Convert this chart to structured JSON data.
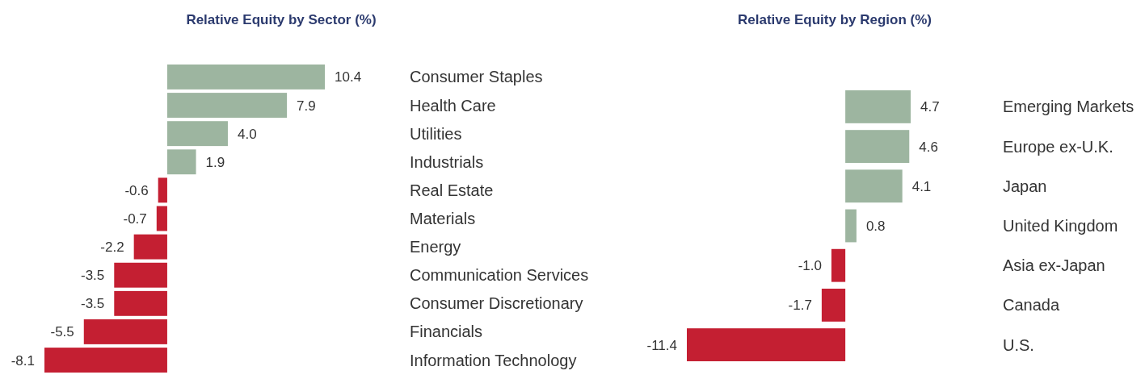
{
  "chart_data": [
    {
      "type": "bar",
      "orientation": "horizontal",
      "title": "Relative Equity by Sector (%)",
      "categories": [
        "Consumer Staples",
        "Health Care",
        "Utilities",
        "Industrials",
        "Real Estate",
        "Materials",
        "Energy",
        "Communication Services",
        "Consumer Discretionary",
        "Financials",
        "Information Technology"
      ],
      "values": [
        10.4,
        7.9,
        4.0,
        1.9,
        -0.6,
        -0.7,
        -2.2,
        -3.5,
        -3.5,
        -5.5,
        -8.1
      ],
      "value_labels": [
        "10.4",
        "7.9",
        "4.0",
        "1.9",
        "-0.6",
        "-0.7",
        "-2.2",
        "-3.5",
        "-3.5",
        "-5.5",
        "-8.1"
      ],
      "colors": [
        "#9db5a0",
        "#9db5a0",
        "#9db5a0",
        "#9db5a0",
        "#c41f32",
        "#c41f32",
        "#c41f32",
        "#c41f32",
        "#c41f32",
        "#c41f32",
        "#c41f32"
      ]
    },
    {
      "type": "bar",
      "orientation": "horizontal",
      "title": "Relative Equity by Region (%)",
      "categories": [
        "Emerging Markets",
        "Europe ex-U.K.",
        "Japan",
        "United Kingdom",
        "Asia ex-Japan",
        "Canada",
        "U.S."
      ],
      "values": [
        4.7,
        4.6,
        4.1,
        0.8,
        -1.0,
        -1.7,
        -11.4
      ],
      "value_labels": [
        "4.7",
        "4.6",
        "4.1",
        "0.8",
        "-1.0",
        "-1.7",
        "-11.4"
      ],
      "colors": [
        "#9db5a0",
        "#9db5a0",
        "#9db5a0",
        "#9db5a0",
        "#c41f32",
        "#c41f32",
        "#c41f32"
      ]
    }
  ]
}
